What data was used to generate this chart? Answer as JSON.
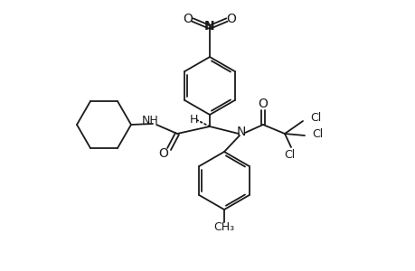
{
  "bg_color": "#ffffff",
  "line_color": "#1a1a1a",
  "lw": 1.3,
  "figsize": [
    4.6,
    3.0
  ],
  "dpi": 100,
  "xlim": [
    0,
    460
  ],
  "ylim": [
    0,
    300
  ]
}
